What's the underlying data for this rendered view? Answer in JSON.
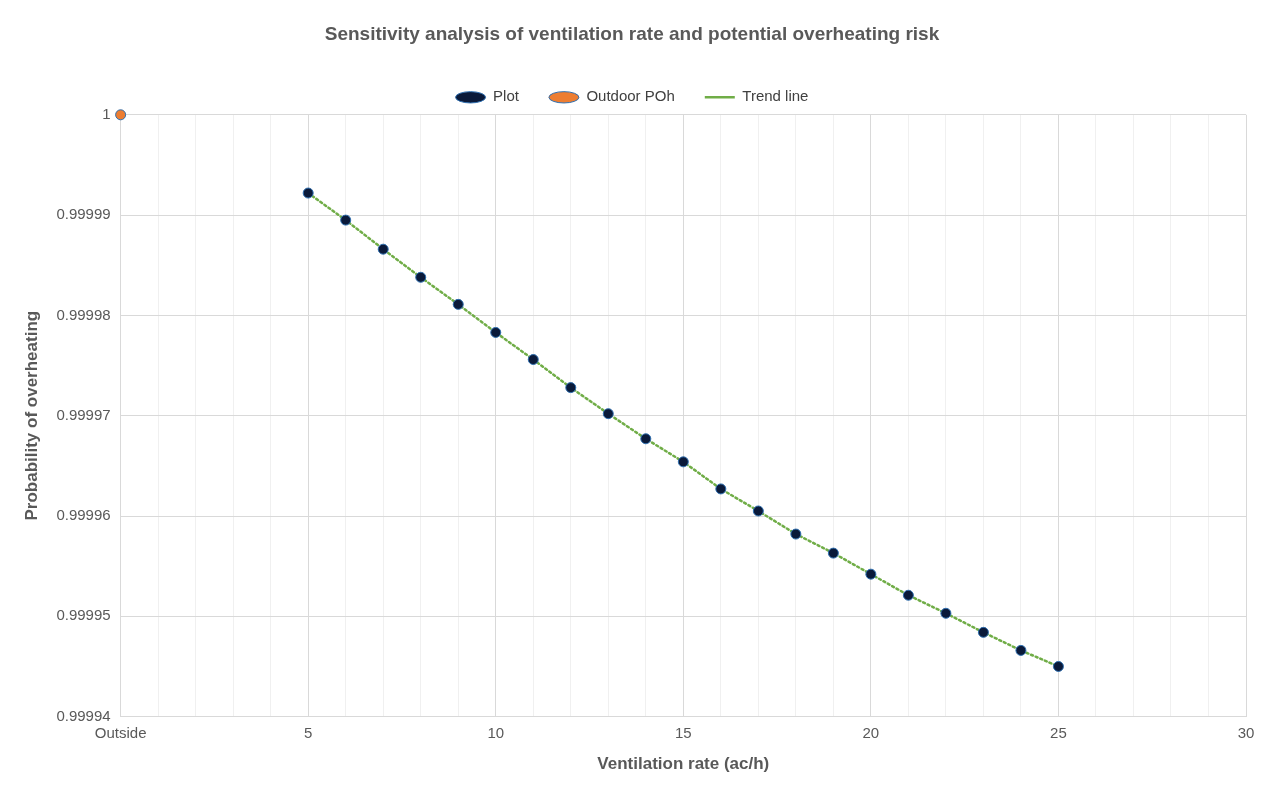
{
  "chart_data": {
    "type": "scatter",
    "title": "Sensitivity analysis of ventilation rate and potential overheating risk",
    "xlabel": "Ventilation rate (ac/h)",
    "ylabel": "Probability of overheating",
    "xlim": [
      0,
      30
    ],
    "xticks": [
      {
        "value": 0,
        "label": "Outside"
      },
      {
        "value": 1,
        "label": null
      },
      {
        "value": 2,
        "label": null
      },
      {
        "value": 3,
        "label": null
      },
      {
        "value": 4,
        "label": null
      },
      5,
      {
        "value": 6,
        "label": null
      },
      {
        "value": 7,
        "label": null
      },
      {
        "value": 8,
        "label": null
      },
      {
        "value": 9,
        "label": null
      },
      10,
      {
        "value": 11,
        "label": null
      },
      {
        "value": 12,
        "label": null
      },
      {
        "value": 13,
        "label": null
      },
      {
        "value": 14,
        "label": null
      },
      15,
      {
        "value": 16,
        "label": null
      },
      {
        "value": 17,
        "label": null
      },
      {
        "value": 18,
        "label": null
      },
      {
        "value": 19,
        "label": null
      },
      20,
      {
        "value": 21,
        "label": null
      },
      {
        "value": 22,
        "label": null
      },
      {
        "value": 23,
        "label": null
      },
      {
        "value": 24,
        "label": null
      },
      25,
      {
        "value": 26,
        "label": null
      },
      {
        "value": 27,
        "label": null
      },
      {
        "value": 28,
        "label": null
      },
      {
        "value": 29,
        "label": null
      },
      30
    ],
    "ylim": [
      0.99994,
      1
    ],
    "yticks": [
      0.99994,
      0.99995,
      0.99996,
      0.99997,
      0.99998,
      0.99999,
      1
    ],
    "grid": true,
    "legend": "top",
    "marker": "circle",
    "series": [
      {
        "name": "Plot",
        "type": "scatter",
        "color": "#0a1a3a",
        "x": [
          5,
          6,
          7,
          8,
          9,
          10,
          11,
          12,
          13,
          14,
          15,
          16,
          17,
          18,
          19,
          20,
          21,
          22,
          23,
          24,
          25
        ],
        "values": [
          0.9999922,
          0.9999895,
          0.9999866,
          0.9999838,
          0.9999811,
          0.9999783,
          0.9999756,
          0.9999728,
          0.9999702,
          0.9999677,
          0.9999654,
          0.9999627,
          0.9999605,
          0.9999582,
          0.9999563,
          0.9999542,
          0.9999521,
          0.9999503,
          0.9999484,
          0.9999466,
          0.999945
        ]
      },
      {
        "name": "Outdoor POh",
        "type": "scatter",
        "color": "#ed7d31",
        "x": [
          0
        ],
        "values": [
          1
        ]
      },
      {
        "name": "Trend line",
        "type": "line",
        "color": "#70ad47",
        "line_style": "dotted",
        "marker": "none",
        "x": [
          5,
          6,
          7,
          8,
          9,
          10,
          11,
          12,
          13,
          14,
          15,
          16,
          17,
          18,
          19,
          20,
          21,
          22,
          23,
          24,
          25
        ],
        "values": [
          0.9999922,
          0.9999895,
          0.9999866,
          0.9999838,
          0.9999811,
          0.9999783,
          0.9999756,
          0.9999728,
          0.9999702,
          0.9999677,
          0.9999654,
          0.9999627,
          0.9999605,
          0.9999582,
          0.9999563,
          0.9999542,
          0.9999521,
          0.9999503,
          0.9999484,
          0.9999466,
          0.999945
        ]
      }
    ]
  }
}
